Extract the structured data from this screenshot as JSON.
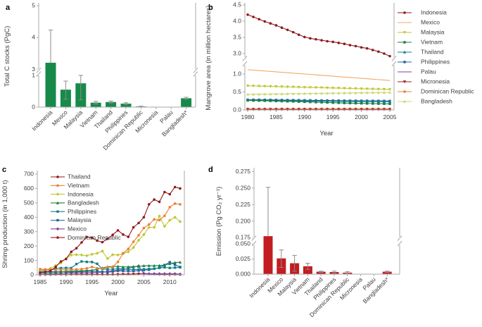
{
  "panels": {
    "a": {
      "letter": "a"
    },
    "b": {
      "letter": "b"
    },
    "c": {
      "letter": "c"
    },
    "d": {
      "letter": "d"
    }
  },
  "chart_data": [
    {
      "panel": "a",
      "type": "bar",
      "ylabel": "Total C stocks (PgC)",
      "bar_color": "#178a4a",
      "error_color": "#8c8c8c",
      "broken_axis": true,
      "y_axis": {
        "segments": [
          {
            "range": [
              0,
              1.05
            ],
            "tick_labels": [
              "0",
              "1"
            ],
            "tick_values": [
              0,
              1
            ]
          },
          {
            "range": [
              2.95,
              5.2
            ],
            "tick_labels": [
              "3",
              "4",
              "5"
            ],
            "tick_values": [
              3,
              4,
              5
            ]
          }
        ]
      },
      "categories": [
        "Indonesia",
        "Mexico",
        "Malaysia",
        "Vietnam",
        "Thailand",
        "Philippines",
        "Dominican Republic",
        "Micronesia",
        "Palau",
        "Bangladesh*"
      ],
      "values": [
        3.2,
        0.55,
        0.75,
        0.14,
        0.16,
        0.11,
        0.02,
        0.012,
        0.005,
        0.28
      ],
      "error_low": [
        3.2,
        0.25,
        0.23,
        0.1,
        0.13,
        0.08,
        0.01,
        0.005,
        0.002,
        0.26
      ],
      "error_high": [
        4.23,
        0.82,
        1.0,
        0.18,
        0.19,
        0.14,
        0.03,
        0.02,
        0.01,
        0.31
      ]
    },
    {
      "panel": "b",
      "type": "line",
      "xlabel": "Year",
      "ylabel": "Mangrove area (in million hectares)",
      "broken_axis": true,
      "legend_position": "right",
      "x_values": [
        1980,
        1981,
        1982,
        1983,
        1984,
        1985,
        1986,
        1987,
        1988,
        1989,
        1990,
        1991,
        1992,
        1993,
        1994,
        1995,
        1996,
        1997,
        1998,
        1999,
        2000,
        2001,
        2002,
        2003,
        2004,
        2005
      ],
      "x_ticks": {
        "labels": [
          "1980",
          "1985",
          "1990",
          "1995",
          "2000",
          "2005"
        ],
        "values": [
          1980,
          1985,
          1990,
          1995,
          2000,
          2005
        ]
      },
      "y_axis": {
        "segments": [
          {
            "range": [
              0,
              1.3
            ],
            "tick_labels": [
              "0.0",
              "0.5",
              "1.0"
            ],
            "tick_values": [
              0,
              0.5,
              1.0
            ]
          },
          {
            "range": [
              2.85,
              4.65
            ],
            "tick_labels": [
              "3.0",
              "3.5",
              "4.0",
              "4.5"
            ],
            "tick_values": [
              3.0,
              3.5,
              4.0,
              4.5
            ]
          }
        ]
      },
      "series": [
        {
          "name": "Indonesia",
          "color": "#8c1a20",
          "marker": "circle",
          "values": [
            4.2,
            4.13,
            4.06,
            3.99,
            3.93,
            3.87,
            3.8,
            3.73,
            3.66,
            3.58,
            3.51,
            3.47,
            3.44,
            3.41,
            3.38,
            3.36,
            3.33,
            3.3,
            3.26,
            3.23,
            3.19,
            3.16,
            3.11,
            3.06,
            3.0,
            2.92
          ]
        },
        {
          "name": "Mexico",
          "color": "#f3a869",
          "marker": "none",
          "values": [
            1.12,
            1.108,
            1.096,
            1.084,
            1.072,
            1.06,
            1.048,
            1.036,
            1.024,
            1.012,
            1.0,
            0.988,
            0.976,
            0.964,
            0.952,
            0.94,
            0.928,
            0.916,
            0.904,
            0.892,
            0.88,
            0.868,
            0.856,
            0.844,
            0.832,
            0.82
          ]
        },
        {
          "name": "Malaysia",
          "color": "#bfc630",
          "marker": "tri-down",
          "values": [
            0.67,
            0.666,
            0.662,
            0.658,
            0.654,
            0.65,
            0.646,
            0.642,
            0.638,
            0.634,
            0.63,
            0.626,
            0.622,
            0.618,
            0.614,
            0.61,
            0.606,
            0.602,
            0.598,
            0.594,
            0.59,
            0.586,
            0.582,
            0.578,
            0.574,
            0.57
          ]
        },
        {
          "name": "Vietnam",
          "color": "#1a8046",
          "marker": "square",
          "values": [
            0.265,
            0.262,
            0.259,
            0.256,
            0.252,
            0.248,
            0.244,
            0.24,
            0.236,
            0.231,
            0.226,
            0.221,
            0.216,
            0.211,
            0.206,
            0.201,
            0.197,
            0.193,
            0.189,
            0.186,
            0.183,
            0.18,
            0.177,
            0.174,
            0.172,
            0.17
          ]
        },
        {
          "name": "Thailand",
          "color": "#12808c",
          "marker": "tri-up",
          "values": [
            0.275,
            0.273,
            0.271,
            0.269,
            0.267,
            0.265,
            0.262,
            0.259,
            0.256,
            0.253,
            0.25,
            0.247,
            0.245,
            0.243,
            0.241,
            0.239,
            0.237,
            0.236,
            0.235,
            0.234,
            0.233,
            0.232,
            0.231,
            0.231,
            0.23,
            0.23
          ]
        },
        {
          "name": "Philippines",
          "color": "#2263a5",
          "marker": "square",
          "values": [
            0.285,
            0.284,
            0.283,
            0.281,
            0.28,
            0.278,
            0.277,
            0.275,
            0.273,
            0.271,
            0.269,
            0.267,
            0.265,
            0.263,
            0.262,
            0.26,
            0.259,
            0.258,
            0.257,
            0.256,
            0.255,
            0.254,
            0.253,
            0.252,
            0.251,
            0.25
          ]
        },
        {
          "name": "Palau",
          "color": "#7e4397",
          "marker": "none",
          "values": [
            0.005,
            0.005,
            0.005,
            0.005,
            0.005,
            0.005,
            0.005,
            0.005,
            0.005,
            0.005,
            0.005,
            0.005,
            0.005,
            0.005,
            0.005,
            0.005,
            0.005,
            0.005,
            0.005,
            0.005,
            0.005,
            0.005,
            0.005,
            0.005,
            0.005,
            0.005
          ]
        },
        {
          "name": "Micronesia",
          "color": "#9e1b20",
          "marker": "tri-down",
          "values": [
            0.009,
            0.009,
            0.009,
            0.009,
            0.009,
            0.009,
            0.009,
            0.009,
            0.009,
            0.009,
            0.009,
            0.009,
            0.009,
            0.009,
            0.009,
            0.009,
            0.009,
            0.009,
            0.009,
            0.009,
            0.009,
            0.009,
            0.009,
            0.009,
            0.009,
            0.009
          ]
        },
        {
          "name": "Dominican Republic",
          "color": "#ee7d30",
          "marker": "circle",
          "values": [
            0.033,
            0.033,
            0.033,
            0.033,
            0.033,
            0.033,
            0.033,
            0.033,
            0.033,
            0.033,
            0.033,
            0.033,
            0.033,
            0.033,
            0.033,
            0.033,
            0.033,
            0.033,
            0.033,
            0.033,
            0.033,
            0.033,
            0.033,
            0.033,
            0.033,
            0.033
          ]
        },
        {
          "name": "Bangladesh",
          "color": "#cfd776",
          "marker": "tri-up",
          "values": [
            0.435,
            0.437,
            0.439,
            0.441,
            0.443,
            0.446,
            0.448,
            0.45,
            0.452,
            0.454,
            0.457,
            0.459,
            0.461,
            0.463,
            0.465,
            0.468,
            0.47,
            0.472,
            0.474,
            0.476,
            0.479,
            0.481,
            0.483,
            0.485,
            0.487,
            0.49
          ]
        }
      ]
    },
    {
      "panel": "c",
      "type": "line",
      "xlabel": "Year",
      "ylabel": "Shrimp production (in 1,000 t)",
      "broken_axis": false,
      "legend_position": "top-left",
      "x_values": [
        1985,
        1986,
        1987,
        1988,
        1989,
        1990,
        1991,
        1992,
        1993,
        1994,
        1995,
        1996,
        1997,
        1998,
        1999,
        2000,
        2001,
        2002,
        2003,
        2004,
        2005,
        2006,
        2007,
        2008,
        2009,
        2010,
        2011,
        2012
      ],
      "x_ticks": {
        "labels": [
          "1985",
          "1990",
          "1995",
          "2000",
          "2005",
          "2010"
        ],
        "values": [
          1985,
          1990,
          1995,
          2000,
          2005,
          2010
        ]
      },
      "y_axis": {
        "segments": [
          {
            "range": [
              0,
              700
            ],
            "tick_labels": [
              "0",
              "100",
              "200",
              "300",
              "400",
              "500",
              "600",
              "700"
            ],
            "tick_values": [
              0,
              100,
              200,
              300,
              400,
              500,
              600,
              700
            ]
          }
        ]
      },
      "series": [
        {
          "name": "Thailand",
          "color": "#8c1a20",
          "marker": "circle",
          "values": [
            15,
            20,
            28,
            55,
            93,
            110,
            160,
            185,
            225,
            263,
            258,
            238,
            227,
            250,
            278,
            309,
            280,
            264,
            330,
            360,
            400,
            490,
            523,
            507,
            575,
            560,
            610,
            600
          ]
        },
        {
          "name": "Vietnam",
          "color": "#ee7d30",
          "marker": "circle",
          "values": [
            40,
            38,
            36,
            34,
            35,
            35,
            36,
            38,
            40,
            45,
            55,
            46,
            45,
            52,
            55,
            90,
            150,
            180,
            230,
            275,
            325,
            350,
            385,
            380,
            410,
            470,
            495,
            490
          ]
        },
        {
          "name": "Indonesia",
          "color": "#bfc630",
          "marker": "diamond",
          "values": [
            30,
            35,
            45,
            65,
            82,
            113,
            138,
            140,
            138,
            133,
            143,
            150,
            165,
            113,
            140,
            138,
            148,
            160,
            190,
            240,
            280,
            330,
            330,
            408,
            337,
            380,
            400,
            370
          ]
        },
        {
          "name": "Bangladesh",
          "color": "#1a8046",
          "marker": "tri-up",
          "values": [
            14,
            15,
            17,
            18,
            20,
            24,
            26,
            28,
            28,
            30,
            32,
            40,
            48,
            56,
            58,
            59,
            55,
            56,
            57,
            58,
            63,
            64,
            64,
            65,
            68,
            77,
            85,
            88
          ]
        },
        {
          "name": "Philippines",
          "color": "#12808c",
          "marker": "square",
          "values": [
            30,
            35,
            35,
            45,
            47,
            48,
            47,
            75,
            93,
            90,
            89,
            77,
            41,
            38,
            39,
            41,
            42,
            37,
            37,
            37,
            39,
            41,
            43,
            48,
            52,
            48,
            50,
            52
          ]
        },
        {
          "name": "Malaysia",
          "color": "#2263a5",
          "marker": "square",
          "values": [
            25,
            23,
            22,
            21,
            22,
            20,
            20,
            21,
            23,
            25,
            25,
            24,
            21,
            18,
            22,
            27,
            27,
            26,
            26,
            30,
            33,
            35,
            42,
            50,
            68,
            88,
            70,
            55
          ]
        },
        {
          "name": "Mexico",
          "color": "#7e4397",
          "marker": "diamond",
          "values": [
            5,
            6,
            7,
            8,
            10,
            12,
            13,
            14,
            15,
            15,
            16,
            17,
            18,
            24,
            28,
            33,
            35,
            45,
            55,
            62,
            10,
            8,
            8,
            8,
            8,
            8,
            8,
            5
          ]
        },
        {
          "name": "Dominican Republic",
          "color": "#9e1b20",
          "marker": "circle",
          "values": [
            2,
            2,
            2,
            3,
            3,
            3,
            3,
            4,
            4,
            4,
            4,
            4,
            3,
            3,
            3,
            4,
            5,
            5,
            6,
            8,
            8,
            6,
            5,
            4,
            3,
            3,
            3,
            2
          ]
        }
      ]
    },
    {
      "panel": "d",
      "type": "bar",
      "ylabel": "Emission (Pg CO₂ yr⁻¹)",
      "bar_color": "#c31c21",
      "error_color": "#8c8c8c",
      "broken_axis": true,
      "y_axis": {
        "segments": [
          {
            "range": [
              0,
              0.0535
            ],
            "tick_labels": [
              "0.000",
              "0.025",
              "0.050"
            ],
            "tick_values": [
              0,
              0.025,
              0.05
            ]
          },
          {
            "range": [
              0.168,
              0.281
            ],
            "tick_labels": [
              "0.175",
              "0.200",
              "0.225",
              "0.250",
              "0.275"
            ],
            "tick_values": [
              0.175,
              0.2,
              0.225,
              0.25,
              0.275
            ]
          }
        ]
      },
      "categories": [
        "Indonesia",
        "Mexico",
        "Malaysia",
        "Vietnam",
        "Thailand",
        "Philippines",
        "Dominican Republic",
        "Micronesia",
        "Palau",
        "Bangladesh*"
      ],
      "values": [
        0.177,
        0.026,
        0.018,
        0.013,
        0.004,
        0.0035,
        0.0025,
        0.0004,
        0.0003,
        0.004
      ],
      "error_low": [
        0.177,
        0.011,
        0.005,
        0.008,
        0.003,
        0.002,
        0.001,
        0.0004,
        0.0003,
        0.003
      ],
      "error_high": [
        0.251,
        0.04,
        0.031,
        0.018,
        0.005,
        0.005,
        0.004,
        0.0005,
        0.0004,
        0.005
      ]
    }
  ]
}
